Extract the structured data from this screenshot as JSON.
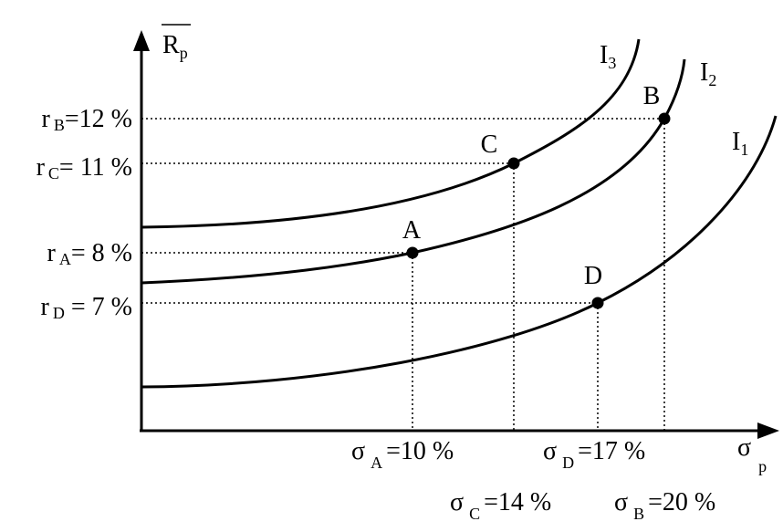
{
  "axes": {
    "y_label": {
      "main": "R",
      "sub": "p"
    },
    "x_label": {
      "main": "σ",
      "sub": "p"
    }
  },
  "curves": [
    {
      "main": "I",
      "sub": "3"
    },
    {
      "main": "I",
      "sub": "2"
    },
    {
      "main": "I",
      "sub": "1"
    }
  ],
  "points": [
    {
      "label": "A"
    },
    {
      "label": "B"
    },
    {
      "label": "C"
    },
    {
      "label": "D"
    }
  ],
  "y_labels": [
    {
      "main": "r",
      "sub": "B",
      "rest": "=12 %"
    },
    {
      "main": "r",
      "sub": "C",
      "rest": "= 11 %"
    },
    {
      "main": "r",
      "sub": "A",
      "rest": "= 8 %"
    },
    {
      "main": "r",
      "sub": "D",
      "rest": " = 7 %"
    }
  ],
  "x_labels": [
    {
      "main": "σ",
      "sub": "A",
      "rest": "=10 %"
    },
    {
      "main": "σ",
      "sub": "D",
      "rest": "=17 %"
    },
    {
      "main": "σ",
      "sub": "C",
      "rest": "=14 %"
    },
    {
      "main": "σ",
      "sub": "B",
      "rest": "=20 %"
    }
  ]
}
